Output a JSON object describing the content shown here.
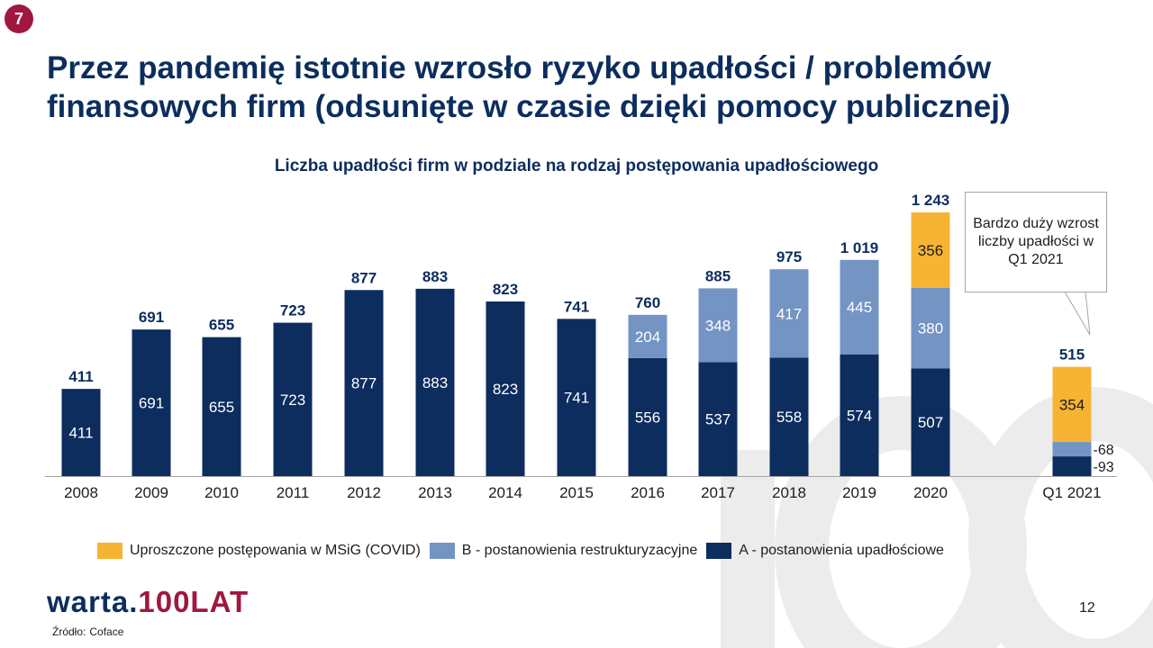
{
  "slide": {
    "badge_number": "7",
    "page_number": "12"
  },
  "title": "Przez pandemię istotnie wzrosło ryzyko upadłości / problemów finansowych firm (odsunięte w czasie dzięki pomocy publicznej)",
  "logo": {
    "part1": "warta.",
    "part2": "100LAT"
  },
  "source": {
    "label": "Źródło:",
    "value": "Coface"
  },
  "callout": {
    "text": "Bardzo duży wzrost liczby upadłości w Q1 2021"
  },
  "colors": {
    "A": "#0c2d5e",
    "B": "#7494c4",
    "COVID": "#f7b334",
    "accent": "#a0173f"
  },
  "chart_data": {
    "type": "bar",
    "stacked": true,
    "title": "Liczba upadłości firm w podziale na rodzaj postępowania upadłościowego",
    "categories": [
      "2008",
      "2009",
      "2010",
      "2011",
      "2012",
      "2013",
      "2014",
      "2015",
      "2016",
      "2017",
      "2018",
      "2019",
      "2020",
      "Q1 2021"
    ],
    "series": [
      {
        "name": "A - postanowienia upadłościowe",
        "key": "A",
        "values": [
          411,
          691,
          655,
          723,
          877,
          883,
          823,
          741,
          556,
          537,
          558,
          574,
          507,
          93
        ]
      },
      {
        "name": "B - postanowienia restrukturyzacyjne",
        "key": "B",
        "values": [
          0,
          0,
          0,
          0,
          0,
          0,
          0,
          0,
          204,
          348,
          417,
          445,
          380,
          68
        ]
      },
      {
        "name": "Uproszczone postępowania w MSiG (COVID)",
        "key": "COVID",
        "values": [
          0,
          0,
          0,
          0,
          0,
          0,
          0,
          0,
          0,
          0,
          0,
          0,
          356,
          354
        ]
      }
    ],
    "totals": [
      "411",
      "691",
      "655",
      "723",
      "877",
      "883",
      "823",
      "741",
      "760",
      "885",
      "975",
      "1 019",
      "1 243",
      "515"
    ],
    "legend_order": [
      "COVID",
      "B",
      "A"
    ],
    "legend_position": "bottom",
    "ylim": [
      0,
      1243
    ],
    "grid": false
  }
}
